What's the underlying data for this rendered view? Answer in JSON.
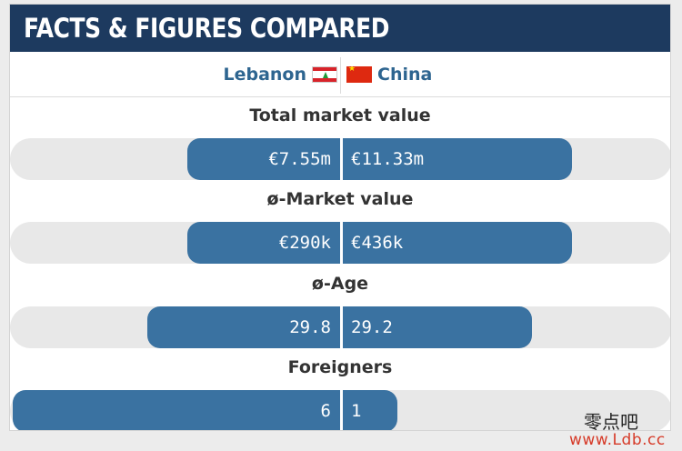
{
  "header": {
    "title": "FACTS & FIGURES COMPARED"
  },
  "teams": {
    "left": {
      "name": "Lebanon",
      "flag_icon": "lebanon-flag-icon"
    },
    "right": {
      "name": "China",
      "flag_icon": "china-flag-icon"
    }
  },
  "stats": [
    {
      "title": "Total market value",
      "left": "€7.55m",
      "right": "€11.33m",
      "left_share": 0.4,
      "right_share": 0.6
    },
    {
      "title": "ø-Market value",
      "left": "€290k",
      "right": "€436k",
      "left_share": 0.4,
      "right_share": 0.6
    },
    {
      "title": "ø-Age",
      "left": "29.8",
      "right": "29.2",
      "left_share": 0.505,
      "right_share": 0.495
    },
    {
      "title": "Foreigners",
      "left": "6",
      "right": "1",
      "left_share": 0.857,
      "right_share": 0.143
    }
  ],
  "watermark": {
    "chinese": "零点吧",
    "url": "www.Ldb.cc"
  },
  "colors": {
    "header": "#1d3a5f",
    "bar": "#3a72a1",
    "team_text": "#2e6590",
    "track": "#e8e8e8"
  }
}
